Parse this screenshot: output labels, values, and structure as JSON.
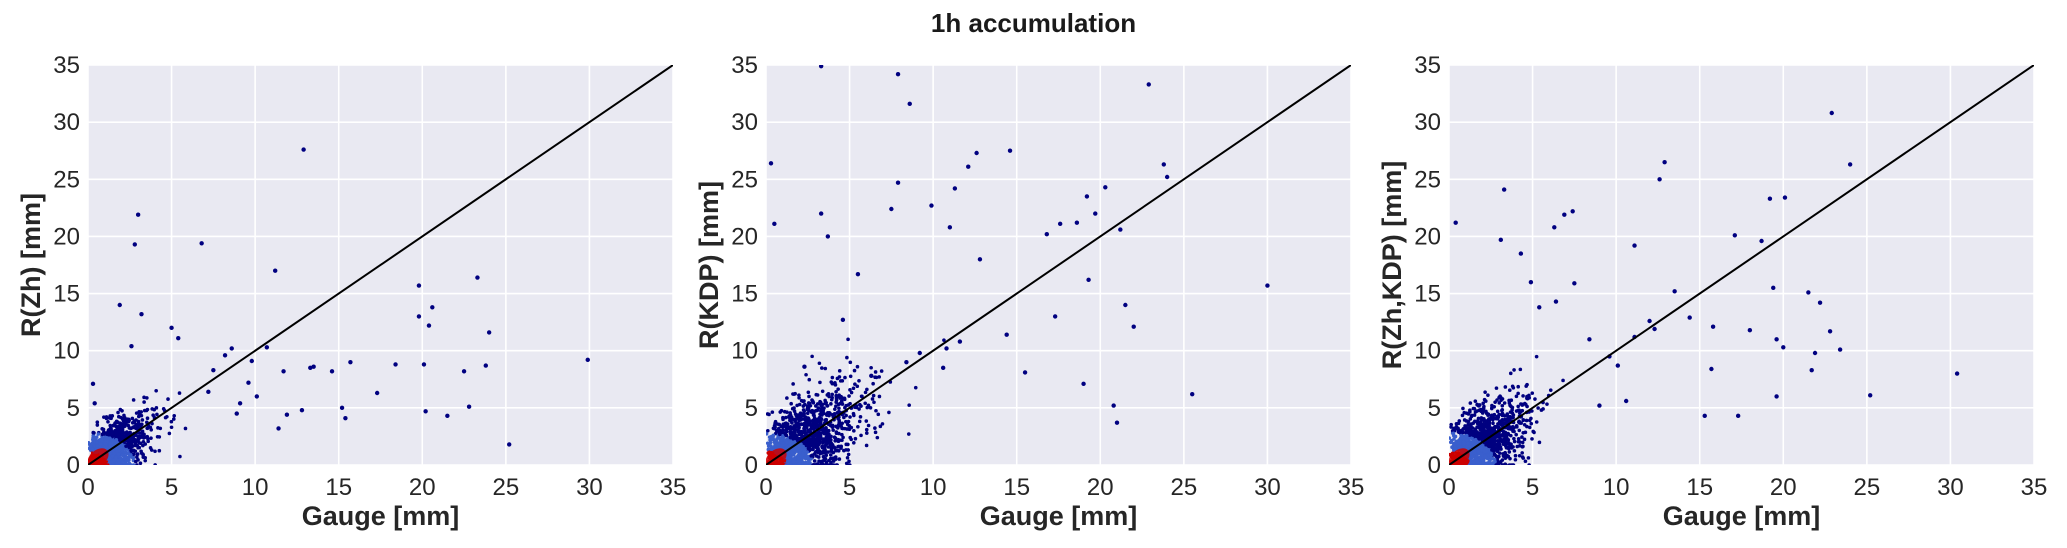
{
  "figure": {
    "suptitle": "1h accumulation",
    "colors": {
      "background": "#e9e9f2",
      "grid": "#ffffff",
      "identity_line": "#000000",
      "point_low_density": "#000080",
      "point_mid_density": "#3a5fcd",
      "point_high_density": "#cc0000"
    }
  },
  "chart_data": [
    {
      "type": "scatter",
      "density_colored": true,
      "xlabel": "Gauge [mm]",
      "ylabel": "R(Zh) [mm]",
      "xlim": [
        0,
        35
      ],
      "ylim": [
        0,
        35
      ],
      "xticks": [
        "0",
        "5",
        "10",
        "15",
        "20",
        "25",
        "30",
        "35"
      ],
      "yticks": [
        "0",
        "5",
        "10",
        "15",
        "20",
        "25",
        "30",
        "35"
      ],
      "grid": true,
      "reference_line": "1:1",
      "x": [
        12.9,
        3.0,
        2.8,
        6.8,
        11.2,
        1.9,
        3.2,
        2.6,
        5.0,
        5.4,
        8.6,
        19.8,
        20.6,
        20.4,
        19.8,
        20.1,
        23.3,
        24.0,
        23.8,
        25.2,
        29.9,
        22.8,
        22.5,
        21.5,
        20.2,
        18.4,
        17.3,
        15.4,
        15.7,
        15.2,
        14.6,
        13.5,
        13.3,
        12.8,
        11.7,
        11.9,
        11.4,
        10.7,
        10.1,
        9.8,
        9.1,
        9.6,
        8.2,
        8.9,
        7.5,
        7.2,
        0.3,
        0.4
      ],
      "y": [
        27.6,
        21.9,
        19.3,
        19.4,
        17.0,
        14.0,
        13.2,
        10.4,
        12.0,
        11.1,
        10.2,
        15.7,
        13.8,
        12.2,
        13.0,
        8.8,
        16.4,
        11.6,
        8.7,
        1.8,
        9.2,
        5.1,
        8.2,
        4.3,
        4.7,
        8.8,
        6.3,
        4.1,
        9.0,
        5.0,
        8.2,
        8.6,
        8.5,
        4.8,
        8.2,
        4.4,
        3.2,
        10.3,
        6.0,
        9.1,
        5.4,
        7.2,
        9.6,
        4.5,
        8.3,
        6.4,
        7.1,
        5.4
      ]
    },
    {
      "type": "scatter",
      "density_colored": true,
      "xlabel": "Gauge [mm]",
      "ylabel": "R(KDP) [mm]",
      "xlim": [
        0,
        35
      ],
      "ylim": [
        0,
        35
      ],
      "xticks": [
        "0",
        "5",
        "10",
        "15",
        "20",
        "25",
        "30",
        "35"
      ],
      "yticks": [
        "0",
        "5",
        "10",
        "15",
        "20",
        "25",
        "30",
        "35"
      ],
      "grid": true,
      "reference_line": "1:1",
      "x": [
        3.3,
        7.9,
        8.6,
        22.9,
        0.3,
        0.5,
        12.6,
        12.1,
        14.6,
        11.3,
        9.9,
        7.5,
        7.9,
        11.0,
        19.2,
        18.6,
        17.6,
        16.8,
        19.7,
        20.3,
        21.2,
        23.8,
        24.0,
        30.0,
        25.5,
        20.8,
        21.0,
        19.3,
        22.0,
        19.0,
        21.5,
        17.3,
        15.5,
        14.4,
        12.8,
        11.6,
        10.8,
        10.6,
        9.2,
        8.4,
        5.5,
        3.7,
        3.3,
        4.6,
        2.3,
        6.3
      ],
      "y": [
        34.9,
        34.2,
        31.6,
        33.3,
        26.4,
        21.1,
        27.3,
        26.1,
        27.5,
        24.2,
        22.7,
        22.4,
        24.7,
        20.8,
        23.5,
        21.2,
        21.1,
        20.2,
        22.0,
        24.3,
        20.6,
        26.3,
        25.2,
        15.7,
        6.2,
        5.2,
        3.7,
        16.2,
        12.1,
        7.1,
        14.0,
        13.0,
        8.1,
        11.4,
        18.0,
        10.8,
        10.2,
        8.5,
        9.8,
        9.0,
        16.7,
        20.0,
        22.0,
        12.7,
        8.6,
        7.8
      ]
    },
    {
      "type": "scatter",
      "density_colored": true,
      "xlabel": "Gauge [mm]",
      "ylabel": "R(Zh,KDP) [mm]",
      "xlim": [
        0,
        35
      ],
      "ylim": [
        0,
        35
      ],
      "xticks": [
        "0",
        "5",
        "10",
        "15",
        "20",
        "25",
        "30",
        "35"
      ],
      "yticks": [
        "0",
        "5",
        "10",
        "15",
        "20",
        "25",
        "30",
        "35"
      ],
      "grid": true,
      "reference_line": "1:1",
      "x": [
        22.9,
        12.9,
        24.0,
        3.3,
        0.4,
        6.3,
        7.4,
        6.9,
        12.6,
        11.1,
        3.1,
        4.3,
        17.1,
        18.7,
        19.2,
        20.1,
        19.4,
        19.6,
        20.0,
        21.5,
        22.2,
        22.8,
        23.4,
        25.2,
        30.4,
        19.6,
        21.7,
        21.9,
        18.0,
        17.3,
        15.3,
        15.7,
        15.8,
        14.4,
        13.5,
        12.3,
        12.0,
        11.1,
        10.6,
        10.1,
        9.6,
        9.0,
        8.4,
        7.5,
        6.4,
        5.4,
        4.9
      ],
      "y": [
        30.8,
        26.5,
        26.3,
        24.1,
        21.2,
        20.8,
        22.2,
        21.9,
        25.0,
        19.2,
        19.7,
        18.5,
        20.1,
        19.6,
        23.3,
        23.4,
        15.5,
        11.0,
        10.3,
        15.1,
        14.2,
        11.7,
        10.1,
        6.1,
        8.0,
        6.0,
        8.3,
        9.8,
        11.8,
        4.3,
        4.3,
        8.4,
        12.1,
        12.9,
        15.2,
        11.9,
        12.6,
        11.2,
        5.6,
        8.7,
        9.5,
        5.2,
        11.0,
        15.9,
        14.3,
        13.8,
        16.0
      ]
    }
  ]
}
